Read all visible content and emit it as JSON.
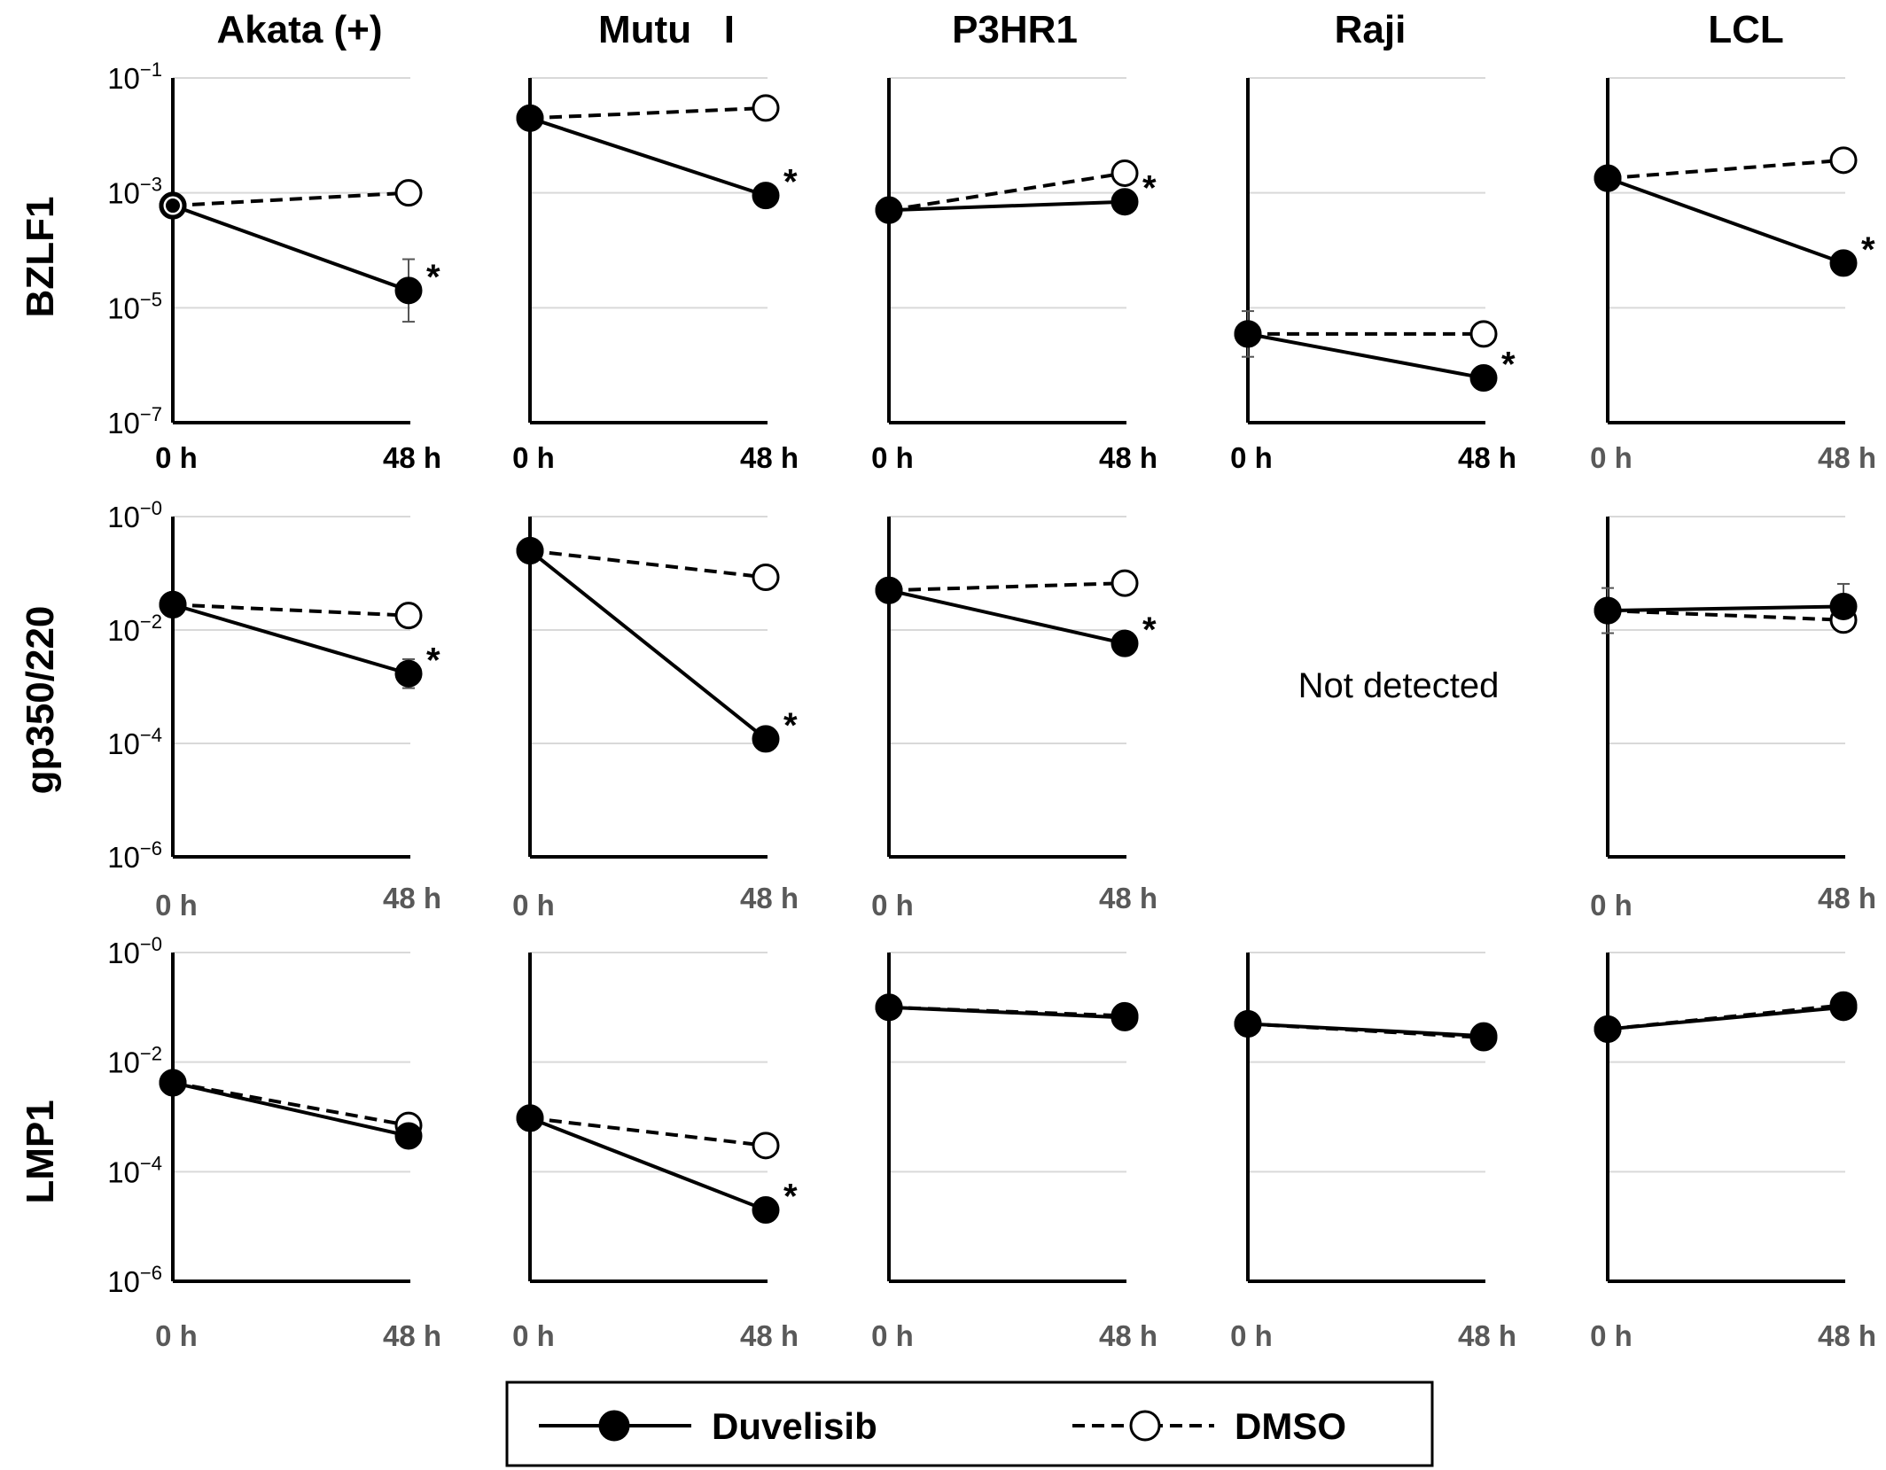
{
  "chart_data": {
    "type": "line",
    "x_categories": [
      "0 h",
      "48 h"
    ],
    "columns": [
      "Akata (+)",
      "Mutu   I",
      "P3HR1",
      "Raji",
      "LCL"
    ],
    "rows": [
      {
        "label": "BZLF1",
        "y_ticks": [
          {
            "base": "10",
            "exp": "−1"
          },
          {
            "base": "10",
            "exp": "−3"
          },
          {
            "base": "10",
            "exp": "−5"
          },
          {
            "base": "10",
            "exp": "−7"
          }
        ],
        "ylim_log10": [
          -7,
          -1
        ]
      },
      {
        "label": "gp350/220",
        "y_ticks": [
          {
            "base": "10",
            "exp": "−0"
          },
          {
            "base": "10",
            "exp": "−2"
          },
          {
            "base": "10",
            "exp": "−4"
          },
          {
            "base": "10",
            "exp": "−6"
          }
        ],
        "ylim_log10": [
          -6,
          0
        ]
      },
      {
        "label": "LMP1",
        "y_ticks": [
          {
            "base": "10",
            "exp": "−0"
          },
          {
            "base": "10",
            "exp": "−2"
          },
          {
            "base": "10",
            "exp": "−4"
          },
          {
            "base": "10",
            "exp": "−6"
          }
        ],
        "ylim_log10": [
          -6,
          0
        ]
      }
    ],
    "scale": "log",
    "grid": true,
    "panels": [
      {
        "row": 0,
        "col": 0,
        "duvelisib": [
          0.0006,
          2e-05
        ],
        "dmso": [
          0.0006,
          0.001
        ],
        "err48": 1.0,
        "errScale": 3.5,
        "sig": true
      },
      {
        "row": 0,
        "col": 1,
        "duvelisib": [
          0.02,
          0.0009
        ],
        "dmso": [
          0.02,
          0.03
        ],
        "sig": true
      },
      {
        "row": 0,
        "col": 2,
        "duvelisib": [
          0.0005,
          0.0007
        ],
        "dmso": [
          0.0005,
          0.0022
        ],
        "sig": true
      },
      {
        "row": 0,
        "col": 3,
        "duvelisib": [
          3.5e-06,
          6e-07
        ],
        "dmso": [
          3.5e-06,
          3.5e-06
        ],
        "err0": 1.0,
        "errScale": 2.5,
        "sig": true
      },
      {
        "row": 0,
        "col": 4,
        "duvelisib": [
          0.0018,
          6e-05
        ],
        "dmso": [
          0.0018,
          0.0037
        ],
        "err48": 1.0,
        "errScale": 1.5,
        "sig": true
      },
      {
        "row": 1,
        "col": 0,
        "duvelisib": [
          0.028,
          0.0017
        ],
        "dmso": [
          0.028,
          0.018
        ],
        "err48": 1.0,
        "errScale": 1.8,
        "sig": true
      },
      {
        "row": 1,
        "col": 1,
        "duvelisib": [
          0.25,
          0.00012
        ],
        "dmso": [
          0.25,
          0.085
        ],
        "sig": true
      },
      {
        "row": 1,
        "col": 2,
        "duvelisib": [
          0.05,
          0.0058
        ],
        "dmso": [
          0.05,
          0.067
        ],
        "sig": true
      },
      {
        "row": 1,
        "col": 3,
        "not_detected": "Not detected"
      },
      {
        "row": 1,
        "col": 4,
        "duvelisib": [
          0.022,
          0.026
        ],
        "dmso": [
          0.022,
          0.015
        ],
        "err0": 1.0,
        "err48": 1.0,
        "errScale": 2.5,
        "sig": false
      },
      {
        "row": 2,
        "col": 0,
        "duvelisib": [
          0.0042,
          0.00045
        ],
        "dmso": [
          0.0042,
          0.0007
        ],
        "sig": false
      },
      {
        "row": 2,
        "col": 1,
        "duvelisib": [
          0.00095,
          2e-05
        ],
        "dmso": [
          0.00095,
          0.0003
        ],
        "sig": true
      },
      {
        "row": 2,
        "col": 2,
        "duvelisib": [
          0.1,
          0.065
        ],
        "dmso": [
          0.1,
          0.07
        ],
        "sig": false
      },
      {
        "row": 2,
        "col": 3,
        "duvelisib": [
          0.05,
          0.03
        ],
        "dmso": [
          0.05,
          0.028
        ],
        "sig": false
      },
      {
        "row": 2,
        "col": 4,
        "duvelisib": [
          0.04,
          0.1
        ],
        "dmso": [
          0.04,
          0.11
        ],
        "sig": false
      }
    ],
    "significance_marker": "*",
    "legend": {
      "position": "bottom-center",
      "items": [
        {
          "name": "Duvelisib",
          "style": "solid",
          "marker": "filled-circle"
        },
        {
          "name": "DMSO",
          "style": "dashed",
          "marker": "open-circle"
        }
      ]
    },
    "colors": {
      "line": "#000000",
      "grid": "#d9d9d9",
      "tick_dark": "#000000",
      "tick_gray": "#595959"
    }
  }
}
